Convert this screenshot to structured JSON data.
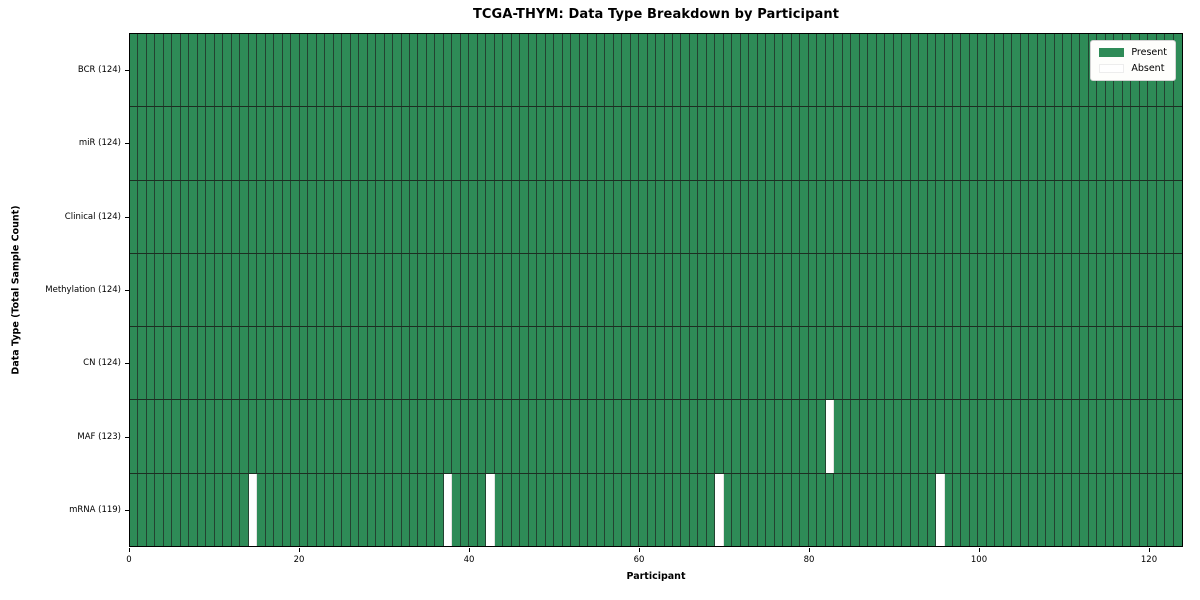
{
  "title": "TCGA-THYM: Data Type Breakdown by Participant",
  "x_axis_label": "Participant",
  "y_axis_label": "Data Type (Total Sample Count)",
  "legend": {
    "present_label": "Present",
    "absent_label": "Absent"
  },
  "colors": {
    "present": "#2e8b57",
    "absent": "#ffffff",
    "cell_border": "#234231",
    "row_border": "#1c2f22"
  },
  "chart_data": {
    "type": "heatmap",
    "title": "TCGA-THYM: Data Type Breakdown by Participant",
    "xlabel": "Participant",
    "ylabel": "Data Type (Total Sample Count)",
    "legend_entries": [
      "Present",
      "Absent"
    ],
    "legend_position": "upper right",
    "n_participants": 124,
    "xlim": [
      0,
      124
    ],
    "x_ticks": [
      0,
      20,
      40,
      60,
      80,
      100,
      120
    ],
    "grid": true,
    "rows": [
      {
        "label": "BCR (124)",
        "data_type": "BCR",
        "total_sample_count": 124,
        "absent_participants": []
      },
      {
        "label": "miR (124)",
        "data_type": "miR",
        "total_sample_count": 124,
        "absent_participants": []
      },
      {
        "label": "Clinical (124)",
        "data_type": "Clinical",
        "total_sample_count": 124,
        "absent_participants": []
      },
      {
        "label": "Methylation (124)",
        "data_type": "Methylation",
        "total_sample_count": 124,
        "absent_participants": []
      },
      {
        "label": "CN (124)",
        "data_type": "CN",
        "total_sample_count": 124,
        "absent_participants": []
      },
      {
        "label": "MAF (123)",
        "data_type": "MAF",
        "total_sample_count": 123,
        "absent_participants": [
          82
        ]
      },
      {
        "label": "mRNA (119)",
        "data_type": "mRNA",
        "total_sample_count": 119,
        "absent_participants": [
          14,
          37,
          42,
          69,
          95
        ]
      }
    ]
  }
}
